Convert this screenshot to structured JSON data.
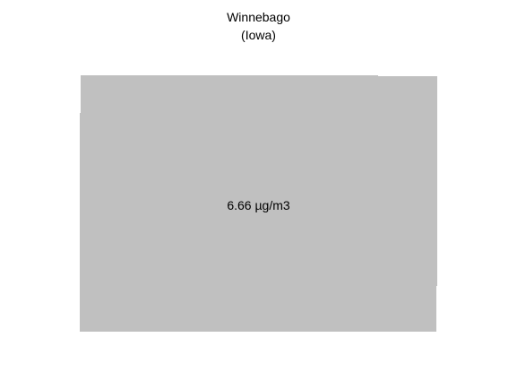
{
  "map": {
    "county": "Winnebago",
    "state": "(Iowa)",
    "value_label": "6.66 µg/m3",
    "fill_color": "#c0c0c0",
    "background_color": "#ffffff"
  }
}
